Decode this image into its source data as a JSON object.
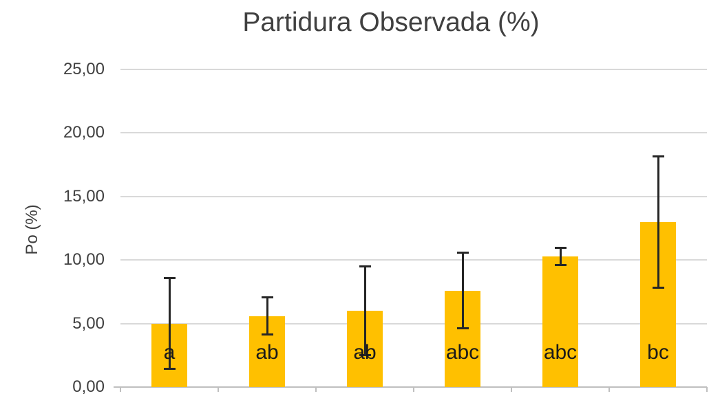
{
  "chart_data": {
    "type": "bar",
    "title": "Partidura Observada (%)",
    "ylabel": "Po (%)",
    "xlabel": "",
    "ylim": [
      0,
      25
    ],
    "y_tick_step": 5,
    "decimal_separator": ",",
    "grid": true,
    "legend": "none",
    "y_ticks": [
      {
        "value": 25,
        "label": "25,00"
      },
      {
        "value": 20,
        "label": "20,00"
      },
      {
        "value": 15,
        "label": "15,00"
      },
      {
        "value": 10,
        "label": "10,00"
      },
      {
        "value": 5,
        "label": "5,00"
      },
      {
        "value": 0,
        "label": "0,00"
      }
    ],
    "bars": [
      {
        "value": 5.0,
        "error": 3.6,
        "label": "a"
      },
      {
        "value": 5.6,
        "error": 1.5,
        "label": "ab"
      },
      {
        "value": 6.0,
        "error": 3.5,
        "label": "ab"
      },
      {
        "value": 7.6,
        "error": 3.0,
        "label": "abc"
      },
      {
        "value": 10.3,
        "error": 0.7,
        "label": "abc"
      },
      {
        "value": 13.0,
        "error": 5.2,
        "label": "bc"
      }
    ],
    "colors": {
      "bar": "#FFC000",
      "error_bar": "#262626",
      "gridline": "#D9D9D9",
      "axis_line": "#BFBFBF",
      "axis_text": "#404040",
      "sig_label_text": "#1A1A1A",
      "background": "#FFFFFF"
    }
  }
}
